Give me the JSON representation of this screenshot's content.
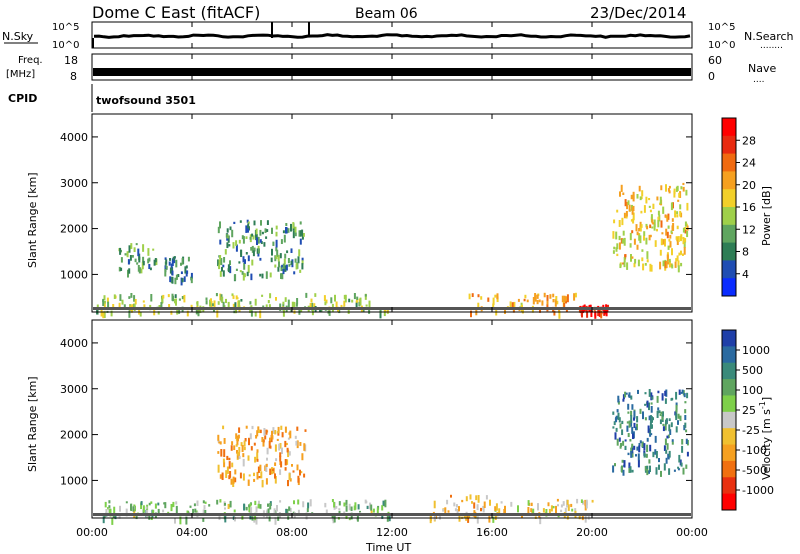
{
  "header": {
    "title": "Dome C East (fitACF)",
    "beam": "Beam 06",
    "date": "23/Dec/2014"
  },
  "noise_panel": {
    "left_label": "N.Sky",
    "right_label": "N.Search",
    "right_dots": "........",
    "left_ticks": [
      "10^5",
      "10^0"
    ],
    "right_ticks": [
      "10^5",
      "10^0"
    ]
  },
  "freq_panel": {
    "left_label_top": "Freq.",
    "left_label_bottom": "[MHz]",
    "right_label": "Nave",
    "right_dots": "....",
    "left_ticks": [
      "18",
      "8"
    ],
    "right_ticks": [
      "60",
      "0"
    ]
  },
  "cpid": {
    "label": "CPID",
    "value": "twofsound 3501"
  },
  "x_axis": {
    "label": "Time UT",
    "ticks": [
      "00:00",
      "04:00",
      "08:00",
      "12:00",
      "16:00",
      "20:00",
      "00:00"
    ]
  },
  "range_axis": {
    "label": "Slant Range [km]",
    "ticks": [
      "1000",
      "2000",
      "3000",
      "4000"
    ]
  },
  "power_colorbar": {
    "label": "Power [dB]",
    "ticks": [
      "4",
      "8",
      "12",
      "16",
      "20",
      "24",
      "28"
    ],
    "colors": [
      "#0a2cff",
      "#1f4db3",
      "#2e7d55",
      "#5fa55f",
      "#9fd04a",
      "#f2d02a",
      "#f5a020",
      "#f06a10",
      "#e82a10",
      "#ff0000"
    ]
  },
  "velocity_colorbar": {
    "label": "Velocity [m s",
    "label_sup": "-1",
    "label_end": "]",
    "ticks": [
      "1000",
      "500",
      "100",
      "25",
      "-25",
      "-100",
      "-500",
      "-1000"
    ],
    "colors": [
      "#1f3fa8",
      "#2a6aa0",
      "#3a8a7a",
      "#5fa55f",
      "#7ed04a",
      "#c8c8c8",
      "#f0c030",
      "#f5a020",
      "#f07010",
      "#e83010",
      "#ff0000"
    ]
  },
  "chart_data": {
    "type": "heatmap",
    "title": "Dome C East (fitACF)",
    "xlabel": "Time UT",
    "x_ticks": [
      "00:00",
      "04:00",
      "08:00",
      "12:00",
      "16:00",
      "20:00",
      "00:00"
    ],
    "ylabel": "Slant Range [km]",
    "ylim": [
      180,
      4500
    ],
    "panels": [
      {
        "name": "Power",
        "unit": "dB",
        "colorbar_range": [
          0,
          32
        ],
        "regions": [
          {
            "t": [
              0.1,
              11.9
            ],
            "r": [
              180,
              600
            ],
            "v": 14
          },
          {
            "t": [
              1.0,
              2.6
            ],
            "r": [
              1100,
              1700
            ],
            "v": 10
          },
          {
            "t": [
              2.8,
              4.0
            ],
            "r": [
              900,
              1400
            ],
            "v": 8
          },
          {
            "t": [
              5.0,
              8.5
            ],
            "r": [
              1000,
              2200
            ],
            "v": 10
          },
          {
            "t": [
              15.0,
              19.5
            ],
            "r": [
              200,
              600
            ],
            "v": 20
          },
          {
            "t": [
              19.5,
              20.6
            ],
            "r": [
              180,
              350
            ],
            "v": 30
          },
          {
            "t": [
              20.8,
              23.8
            ],
            "r": [
              1200,
              3000
            ],
            "v": 18
          }
        ]
      },
      {
        "name": "Velocity",
        "unit": "m s^-1",
        "colorbar_range": [
          -1000,
          1000
        ],
        "regions": [
          {
            "t": [
              0.1,
              11.9
            ],
            "r": [
              180,
              600
            ],
            "v": 200
          },
          {
            "t": [
              5.0,
              8.5
            ],
            "r": [
              1000,
              2200
            ],
            "v": -300
          },
          {
            "t": [
              13.5,
              16.0
            ],
            "r": [
              200,
              700
            ],
            "v": -200
          },
          {
            "t": [
              16.0,
              20.0
            ],
            "r": [
              200,
              600
            ],
            "v": -150
          },
          {
            "t": [
              20.8,
              23.8
            ],
            "r": [
              1200,
              3000
            ],
            "v": 600
          }
        ]
      }
    ]
  }
}
